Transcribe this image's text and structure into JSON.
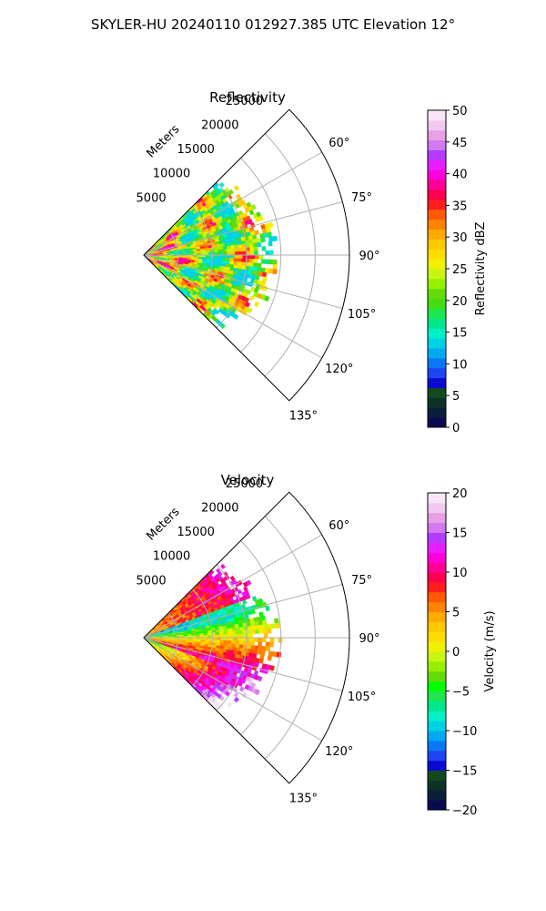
{
  "figure_title": "SKYLER-HU  20240110  012927.385 UTC Elevation 12°",
  "colors": {
    "reflectivity_scale": [
      "#0a0a50",
      "#0a1e3c",
      "#0d3328",
      "#124a1e",
      "#0a0ad2",
      "#1e46f0",
      "#0a78f5",
      "#00aaf0",
      "#00d2e6",
      "#00f0c8",
      "#00e68c",
      "#1ee650",
      "#46dc14",
      "#64dc0a",
      "#96f000",
      "#c8f514",
      "#f0f000",
      "#ffdc00",
      "#ffc800",
      "#ffaa00",
      "#ff8200",
      "#ff5a00",
      "#ff1e1e",
      "#ff0050",
      "#ff0096",
      "#ff00dc",
      "#e61eff",
      "#b43cff",
      "#d278f0",
      "#e6a0e6",
      "#f0c8f0",
      "#f8e6f8"
    ],
    "velocity_scale": [
      "#0a0a50",
      "#0a1e3c",
      "#0d3328",
      "#124a1e",
      "#0a0ad2",
      "#1e46f0",
      "#0a78f5",
      "#00aaf0",
      "#00d2e6",
      "#00f0c8",
      "#00e68c",
      "#1ee650",
      "#00ff00",
      "#64dc0a",
      "#96f000",
      "#c8f514",
      "#f0f000",
      "#ffdc00",
      "#ffc800",
      "#ffaa00",
      "#ff8200",
      "#ff5a00",
      "#ff1e1e",
      "#ff0050",
      "#ff0096",
      "#ff00dc",
      "#e61eff",
      "#b43cff",
      "#d278f0",
      "#e6a0e6",
      "#f0c8f0",
      "#f8e6f8"
    ],
    "grid": "#b0b0b0"
  },
  "chart_data": [
    {
      "type": "polar-sector",
      "title": "Reflectivity",
      "radial_axis_label": "Meters",
      "r_ticks": [
        5000,
        10000,
        15000,
        20000,
        25000
      ],
      "r_tick_labels": [
        "5000",
        "10000",
        "15000",
        "20000",
        "25000"
      ],
      "r_max": 30000,
      "theta_range_deg": [
        45,
        135
      ],
      "theta_ticks_deg": [
        60,
        75,
        90,
        105,
        120,
        135
      ],
      "theta_tick_labels": [
        "60°",
        "75°",
        "90°",
        "105°",
        "120°",
        "135°"
      ],
      "data_extent_m": 20000,
      "colorbar": {
        "label": "Reflectivity dBZ",
        "range": [
          0,
          50
        ],
        "ticks": [
          0,
          5,
          10,
          15,
          20,
          25,
          30,
          35,
          40,
          45,
          50
        ],
        "tick_labels": [
          "0",
          "5",
          "10",
          "15",
          "20",
          "25",
          "30",
          "35",
          "40",
          "45",
          "50"
        ]
      }
    },
    {
      "type": "polar-sector",
      "title": "Velocity",
      "radial_axis_label": "Meters",
      "r_ticks": [
        5000,
        10000,
        15000,
        20000,
        25000
      ],
      "r_tick_labels": [
        "5000",
        "10000",
        "15000",
        "20000",
        "25000"
      ],
      "r_max": 30000,
      "theta_range_deg": [
        45,
        135
      ],
      "theta_ticks_deg": [
        60,
        75,
        90,
        105,
        120,
        135
      ],
      "theta_tick_labels": [
        "60°",
        "75°",
        "90°",
        "105°",
        "120°",
        "135°"
      ],
      "data_extent_m": 20000,
      "colorbar": {
        "label": "Velocity (m/s)",
        "range": [
          -20,
          20
        ],
        "ticks": [
          -20,
          -15,
          -10,
          -5,
          0,
          5,
          10,
          15,
          20
        ],
        "tick_labels": [
          "−20",
          "−15",
          "−10",
          "−5",
          "0",
          "5",
          "10",
          "15",
          "20"
        ]
      }
    }
  ]
}
